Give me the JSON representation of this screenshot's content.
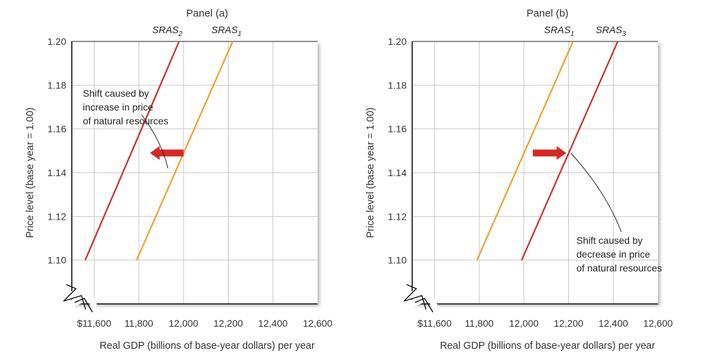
{
  "chart_data": [
    {
      "type": "line",
      "title": "Panel (a)",
      "xlabel": "Real GDP (billions of base-year dollars) per year",
      "ylabel": "Price level (base year = 1.00)",
      "xlim": [
        11500,
        12600
      ],
      "ylim": [
        1.08,
        1.2
      ],
      "x_ticks": [
        11600,
        11800,
        12000,
        12200,
        12400,
        12600
      ],
      "x_tick_labels": [
        "$11,600",
        "11,800",
        "12,000",
        "12,200",
        "12,400",
        "12,600"
      ],
      "y_ticks": [
        1.1,
        1.12,
        1.14,
        1.16,
        1.18,
        1.2
      ],
      "y_tick_labels": [
        "1.10",
        "1.12",
        "1.14",
        "1.16",
        "1.18",
        "1.20"
      ],
      "grid": true,
      "axis_break": true,
      "series": [
        {
          "name": "SRAS",
          "subscript": "2",
          "color": "#c8312e",
          "points": [
            [
              11560,
              1.1
            ],
            [
              11980,
              1.2
            ]
          ]
        },
        {
          "name": "SRAS",
          "subscript": "1",
          "color": "#f0a030",
          "points": [
            [
              11790,
              1.1
            ],
            [
              12220,
              1.2
            ]
          ]
        }
      ],
      "arrow": {
        "direction": "left",
        "color": "#d42a24",
        "from": [
          12000,
          1.149
        ],
        "to": [
          11850,
          1.149
        ]
      },
      "annotation": {
        "lines": [
          "Shift caused by",
          "increase in price",
          "of natural resources"
        ],
        "pointer_to": [
          11930,
          1.142
        ]
      }
    },
    {
      "type": "line",
      "title": "Panel (b)",
      "xlabel": "Real GDP (billions of base-year dollars) per year",
      "ylabel": "Price level (base year = 1.00)",
      "xlim": [
        11500,
        12600
      ],
      "ylim": [
        1.08,
        1.2
      ],
      "x_ticks": [
        11600,
        11800,
        12000,
        12200,
        12400,
        12600
      ],
      "x_tick_labels": [
        "$11,600",
        "11,800",
        "12,000",
        "12,200",
        "12,400",
        "12,600"
      ],
      "y_ticks": [
        1.1,
        1.12,
        1.14,
        1.16,
        1.18,
        1.2
      ],
      "y_tick_labels": [
        "1.10",
        "1.12",
        "1.14",
        "1.16",
        "1.18",
        "1.20"
      ],
      "grid": true,
      "axis_break": true,
      "series": [
        {
          "name": "SRAS",
          "subscript": "1",
          "color": "#f0a030",
          "points": [
            [
              11790,
              1.1
            ],
            [
              12220,
              1.2
            ]
          ]
        },
        {
          "name": "SRAS",
          "subscript": "3",
          "color": "#c8312e",
          "points": [
            [
              11990,
              1.1
            ],
            [
              12420,
              1.2
            ]
          ]
        }
      ],
      "arrow": {
        "direction": "right",
        "color": "#d42a24",
        "from": [
          12040,
          1.149
        ],
        "to": [
          12190,
          1.149
        ]
      },
      "annotation": {
        "lines": [
          "Shift caused by",
          "decrease in price",
          "of natural resources"
        ],
        "pointer_to": [
          12210,
          1.149
        ]
      }
    }
  ]
}
